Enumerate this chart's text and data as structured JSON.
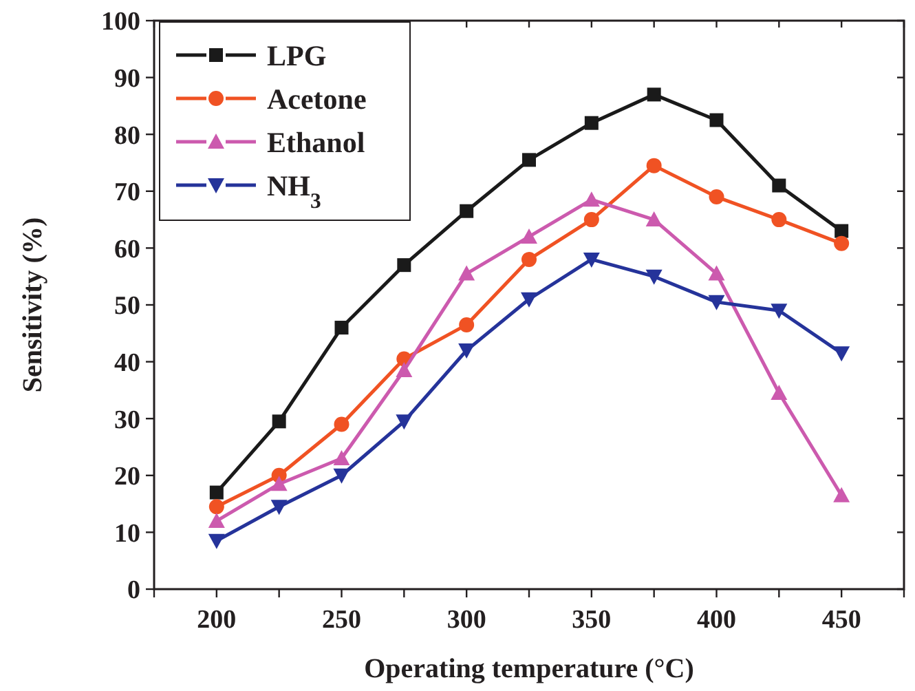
{
  "chart_data": {
    "type": "line",
    "xlabel": "Operating temperature (°C)",
    "ylabel": "Sensitivity (%)",
    "x": [
      200,
      225,
      250,
      275,
      300,
      325,
      350,
      375,
      400,
      425,
      450
    ],
    "xlim": [
      175,
      475
    ],
    "xticks": [
      {
        "value": 175,
        "label": null
      },
      200,
      {
        "value": 225,
        "label": null
      },
      250,
      {
        "value": 275,
        "label": null
      },
      300,
      {
        "value": 325,
        "label": null
      },
      350,
      {
        "value": 375,
        "label": null
      },
      400,
      {
        "value": 425,
        "label": null
      },
      450,
      {
        "value": 475,
        "label": null
      }
    ],
    "ylim": [
      0,
      100
    ],
    "yticks": [
      0,
      10,
      20,
      30,
      40,
      50,
      60,
      70,
      80,
      90,
      100
    ],
    "grid": false,
    "legend": "top left",
    "line_style": "solid",
    "series": [
      {
        "name": "LPG",
        "color": "#1a1a1a",
        "marker": "square",
        "values": [
          17,
          29.5,
          46,
          57,
          66.5,
          75.5,
          82,
          87,
          82.5,
          71,
          63
        ]
      },
      {
        "name": "Acetone",
        "color": "#f05223",
        "marker": "circle",
        "values": [
          14.5,
          20,
          29,
          40.5,
          46.5,
          58,
          65,
          74.5,
          69,
          65,
          60.8
        ]
      },
      {
        "name": "Ethanol",
        "color": "#cc5aae",
        "marker": "triangle",
        "values": [
          12,
          18.5,
          23,
          38.5,
          55.5,
          62,
          68.5,
          65,
          55.5,
          34.5,
          16.5
        ]
      },
      {
        "name": "NH$_{3}$",
        "color": "#25339a",
        "marker": "triangle-down",
        "values": [
          8.5,
          14.5,
          20,
          29.5,
          42,
          51,
          58,
          55,
          50.5,
          49,
          41.5
        ]
      }
    ]
  }
}
